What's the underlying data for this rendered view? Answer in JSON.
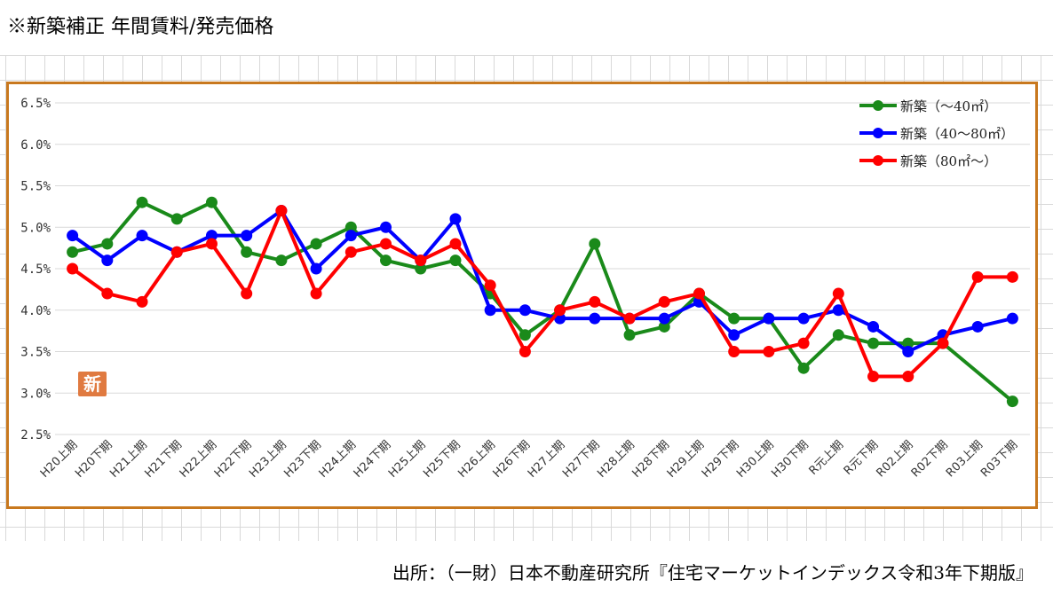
{
  "title": "※新築補正 年間賃料/発売価格",
  "source": "出所：（一財）日本不動産研究所『住宅マーケットインデックス令和3年下期版』",
  "badge": "新",
  "chart_data": {
    "type": "line",
    "categories": [
      "H20上期",
      "H20下期",
      "H21上期",
      "H21下期",
      "H22上期",
      "H22下期",
      "H23上期",
      "H23下期",
      "H24上期",
      "H24下期",
      "H25上期",
      "H25下期",
      "H26上期",
      "H26下期",
      "H27上期",
      "H27下期",
      "H28上期",
      "H28下期",
      "H29上期",
      "H29下期",
      "H30上期",
      "H30下期",
      "R元上期",
      "R元下期",
      "R02上期",
      "R02下期",
      "R03上期",
      "R03下期"
    ],
    "yticks": [
      "6.5%",
      "6.0%",
      "5.5%",
      "5.0%",
      "4.5%",
      "4.0%",
      "3.5%",
      "3.0%",
      "2.5%"
    ],
    "ylim": [
      2.5,
      6.5
    ],
    "grid": "horizontal",
    "legend_position": "top-right",
    "series": [
      {
        "name": "新築（～40㎡）",
        "color": "#1a8a1a",
        "values": [
          4.7,
          4.8,
          5.3,
          5.1,
          5.3,
          4.7,
          4.6,
          4.8,
          5.0,
          4.6,
          4.5,
          4.6,
          4.2,
          3.7,
          4.0,
          4.8,
          3.7,
          3.8,
          4.2,
          3.9,
          3.9,
          3.3,
          3.7,
          3.6,
          3.6,
          3.6,
          null,
          2.9
        ]
      },
      {
        "name": "新築（40～80㎡）",
        "color": "#0000ff",
        "values": [
          4.9,
          4.6,
          4.9,
          4.7,
          4.9,
          4.9,
          5.2,
          4.5,
          4.9,
          5.0,
          4.6,
          5.1,
          4.0,
          4.0,
          3.9,
          3.9,
          3.9,
          3.9,
          4.1,
          3.7,
          3.9,
          3.9,
          4.0,
          3.8,
          3.5,
          3.7,
          3.8,
          3.9
        ]
      },
      {
        "name": "新築（80㎡～）",
        "color": "#ff0000",
        "values": [
          4.5,
          4.2,
          4.1,
          4.7,
          4.8,
          4.2,
          5.2,
          4.2,
          4.7,
          4.8,
          4.6,
          4.8,
          4.3,
          3.5,
          4.0,
          4.1,
          3.9,
          4.1,
          4.2,
          3.5,
          3.5,
          3.6,
          4.2,
          3.2,
          3.2,
          3.6,
          4.4,
          4.4
        ]
      }
    ]
  }
}
